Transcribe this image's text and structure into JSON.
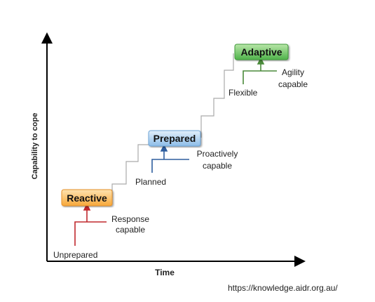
{
  "axes": {
    "y_label": "Capability to cope",
    "x_label": "Time"
  },
  "stages": [
    {
      "label": "Reactive",
      "from": "Unprepared",
      "to": [
        "Response",
        "capable"
      ]
    },
    {
      "label": "Prepared",
      "from": "Planned",
      "to": [
        "Proactively",
        "capable"
      ]
    },
    {
      "label": "Adaptive",
      "from": "Flexible",
      "to": [
        "Agility",
        "capable"
      ]
    }
  ],
  "source": "https://knowledge.aidr.org.au/"
}
